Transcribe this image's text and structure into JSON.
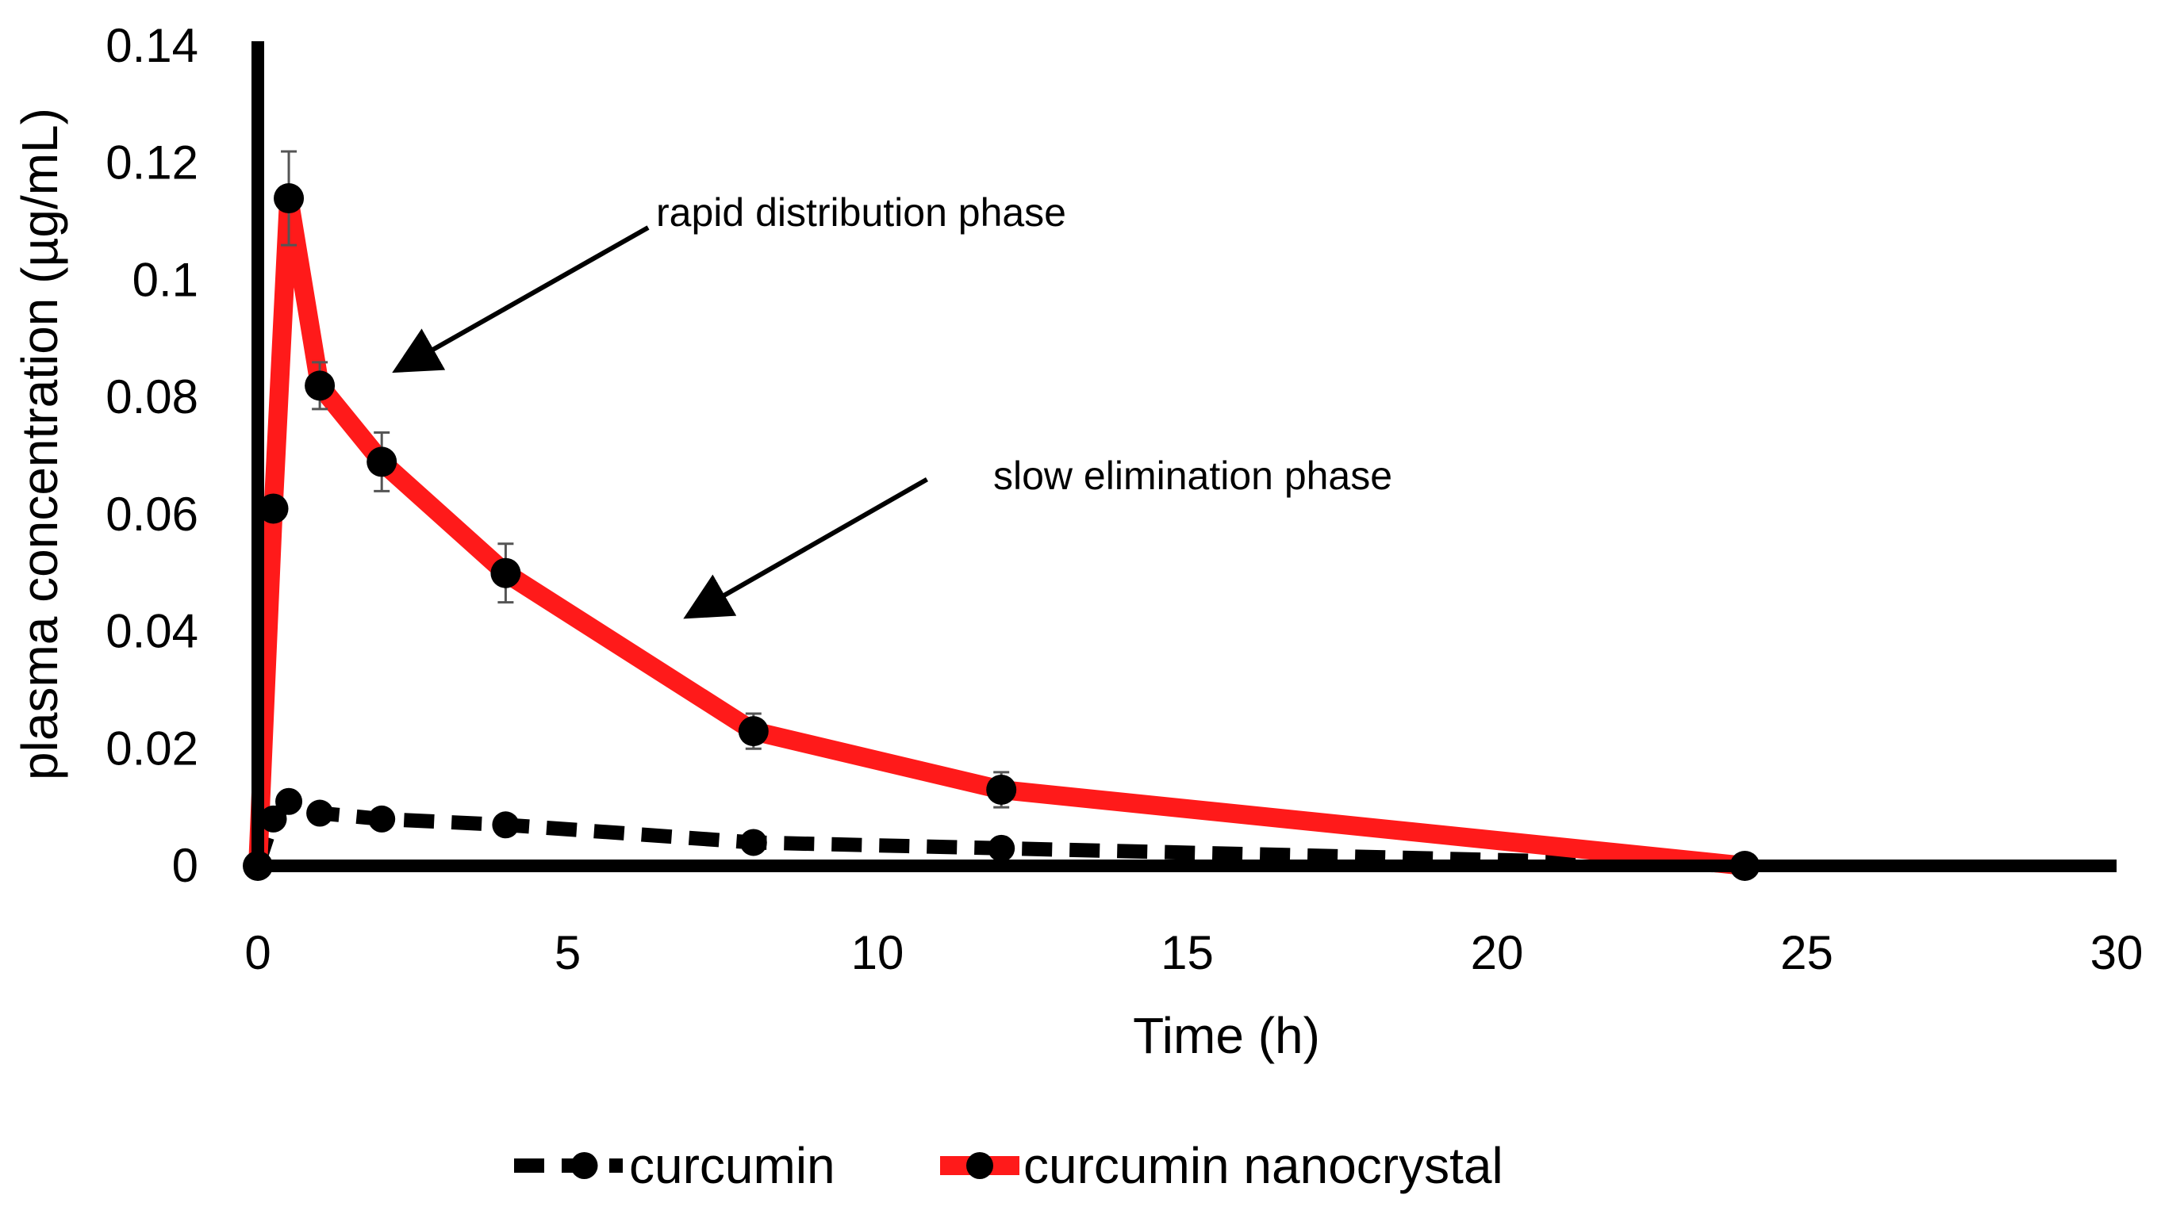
{
  "chart_data": {
    "type": "line",
    "title": "",
    "xlabel": "Time (h)",
    "ylabel": "plasma concentration (µg/mL)",
    "xlim": [
      0,
      30
    ],
    "ylim": [
      0,
      0.14
    ],
    "xticks": [
      0,
      5,
      10,
      15,
      20,
      25,
      30
    ],
    "xtick_labels": [
      "0",
      "5",
      "10",
      "15",
      "20",
      "25",
      "30"
    ],
    "yticks": [
      0,
      0.02,
      0.04,
      0.06,
      0.08,
      0.1,
      0.12,
      0.14
    ],
    "ytick_labels": [
      "0",
      "0.02",
      "0.04",
      "0.06",
      "0.08",
      "0.1",
      "0.12",
      "0.14"
    ],
    "grid": false,
    "legend_position": "bottom",
    "series": [
      {
        "name": "curcumin",
        "style": "dashed",
        "color": "#000000",
        "marker_color": "#000000",
        "x": [
          0,
          0.25,
          0.5,
          1,
          2,
          4,
          8,
          12,
          24
        ],
        "y": [
          0,
          0.008,
          0.011,
          0.009,
          0.008,
          0.007,
          0.004,
          0.003,
          0
        ],
        "error": [
          0,
          0.001,
          0.001,
          0.001,
          0.001,
          0.001,
          0.001,
          0.001,
          0
        ]
      },
      {
        "name": "curcumin nanocrystal",
        "style": "solid",
        "color": "#ff1a1a",
        "marker_color": "#000000",
        "x": [
          0,
          0.25,
          0.5,
          1,
          2,
          4,
          8,
          12,
          24
        ],
        "y": [
          0,
          0.061,
          0.114,
          0.082,
          0.069,
          0.05,
          0.023,
          0.013,
          0
        ],
        "error": [
          0,
          0.002,
          0.008,
          0.004,
          0.005,
          0.005,
          0.003,
          0.003,
          0
        ]
      }
    ],
    "annotations": [
      {
        "text": "rapid distribution phase",
        "arrow_from": [
          6.3,
          0.109
        ],
        "arrow_to": [
          2.3,
          0.085
        ]
      },
      {
        "text": "slow elimination phase",
        "arrow_from": [
          10.8,
          0.066
        ],
        "arrow_to": [
          7.0,
          0.043
        ]
      }
    ]
  }
}
